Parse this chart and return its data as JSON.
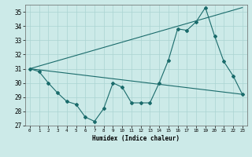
{
  "xlabel": "Humidex (Indice chaleur)",
  "ylabel": "",
  "bg_color": "#cceae8",
  "line_color": "#1a6b6b",
  "grid_color": "#aad4d2",
  "xlim": [
    -0.5,
    23.5
  ],
  "ylim": [
    27,
    35.5
  ],
  "yticks": [
    27,
    28,
    29,
    30,
    31,
    32,
    33,
    34,
    35
  ],
  "xticks": [
    0,
    1,
    2,
    3,
    4,
    5,
    6,
    7,
    8,
    9,
    10,
    11,
    12,
    13,
    14,
    15,
    16,
    17,
    18,
    19,
    20,
    21,
    22,
    23
  ],
  "series1_x": [
    0,
    1,
    2,
    3,
    4,
    5,
    6,
    7,
    8,
    9,
    10,
    11,
    12,
    13,
    14,
    15,
    16,
    17,
    18,
    19,
    20,
    21,
    22,
    23
  ],
  "series1_y": [
    31.0,
    30.8,
    30.0,
    29.3,
    28.7,
    28.5,
    27.6,
    27.3,
    28.2,
    30.0,
    29.7,
    28.6,
    28.6,
    28.6,
    30.0,
    31.6,
    33.8,
    33.7,
    34.3,
    35.3,
    33.3,
    31.5,
    30.5,
    29.2
  ],
  "series2_x": [
    0,
    23
  ],
  "series2_y": [
    31.0,
    29.2
  ],
  "series3_x": [
    0,
    23
  ],
  "series3_y": [
    31.0,
    35.3
  ],
  "figsize": [
    3.2,
    2.0
  ],
  "dpi": 100
}
